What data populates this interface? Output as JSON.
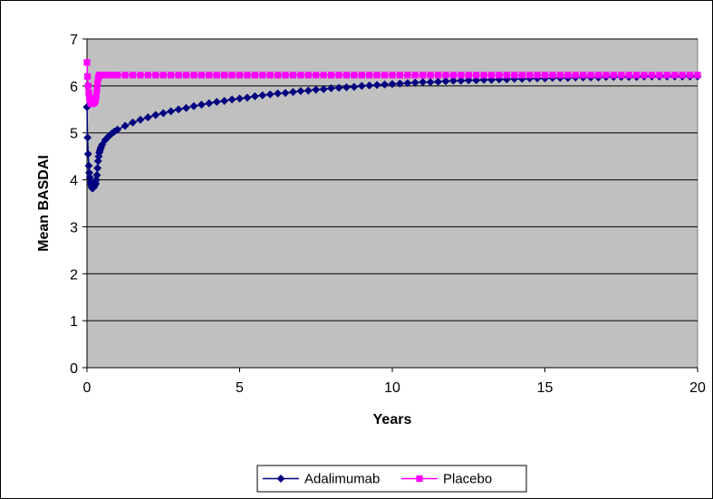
{
  "chart_data": {
    "type": "line",
    "title": "",
    "xlabel": "Years",
    "ylabel": "Mean BASDAI",
    "xlim": [
      0,
      20
    ],
    "ylim": [
      0,
      7
    ],
    "xticks": [
      0,
      5,
      10,
      15,
      20
    ],
    "yticks": [
      0,
      1,
      2,
      3,
      4,
      5,
      6,
      7
    ],
    "grid": "horizontal",
    "plot_background": "#c0c0c0",
    "legend_position": "bottom-center",
    "series": [
      {
        "name": "Adalimumab",
        "color": "#000080",
        "marker": "diamond",
        "x": [
          0,
          0.019,
          0.038,
          0.058,
          0.077,
          0.096,
          0.115,
          0.135,
          0.154,
          0.173,
          0.192,
          0.212,
          0.231,
          0.25,
          0.269,
          0.288,
          0.308,
          0.327,
          0.346,
          0.365,
          0.385,
          0.404,
          0.423,
          0.442,
          0.462,
          0.5,
          0.6,
          0.7,
          0.8,
          0.9,
          1.0,
          1.25,
          1.5,
          1.75,
          2.0,
          2.25,
          2.5,
          2.75,
          3.0,
          3.25,
          3.5,
          3.75,
          4.0,
          4.25,
          4.5,
          4.75,
          5.0,
          5.25,
          5.5,
          5.75,
          6.0,
          6.25,
          6.5,
          6.75,
          7.0,
          7.25,
          7.5,
          7.75,
          8.0,
          8.25,
          8.5,
          8.75,
          9.0,
          9.25,
          9.5,
          9.75,
          10.0,
          10.25,
          10.5,
          10.75,
          11.0,
          11.25,
          11.5,
          11.75,
          12.0,
          12.25,
          12.5,
          12.75,
          13.0,
          13.25,
          13.5,
          13.75,
          14.0,
          14.25,
          14.5,
          14.75,
          15.0,
          15.25,
          15.5,
          15.75,
          16.0,
          16.25,
          16.5,
          16.75,
          17.0,
          17.25,
          17.5,
          17.75,
          18.0,
          18.25,
          18.5,
          18.75,
          19.0,
          19.25,
          19.5,
          19.75,
          20.0
        ],
        "values": [
          5.55,
          4.9,
          4.55,
          4.3,
          4.15,
          4.05,
          3.95,
          3.9,
          3.85,
          3.82,
          3.82,
          3.85,
          3.85,
          3.88,
          3.9,
          3.92,
          4.0,
          4.1,
          4.25,
          4.4,
          4.5,
          4.58,
          4.62,
          4.66,
          4.7,
          4.75,
          4.85,
          4.92,
          4.98,
          5.03,
          5.07,
          5.15,
          5.22,
          5.28,
          5.33,
          5.38,
          5.42,
          5.46,
          5.5,
          5.53,
          5.57,
          5.6,
          5.63,
          5.66,
          5.68,
          5.71,
          5.73,
          5.75,
          5.78,
          5.8,
          5.82,
          5.84,
          5.85,
          5.87,
          5.89,
          5.9,
          5.92,
          5.93,
          5.95,
          5.96,
          5.97,
          5.98,
          6.0,
          6.01,
          6.02,
          6.03,
          6.04,
          6.05,
          6.06,
          6.07,
          6.08,
          6.08,
          6.09,
          6.1,
          6.11,
          6.11,
          6.12,
          6.12,
          6.13,
          6.13,
          6.14,
          6.14,
          6.15,
          6.15,
          6.16,
          6.16,
          6.16,
          6.17,
          6.17,
          6.17,
          6.18,
          6.18,
          6.18,
          6.18,
          6.19,
          6.19,
          6.19,
          6.19,
          6.19,
          6.2,
          6.2,
          6.2,
          6.2,
          6.2,
          6.2,
          6.2,
          6.2
        ]
      },
      {
        "name": "Placebo",
        "color": "#ff00ff",
        "marker": "square",
        "x": [
          0,
          0.019,
          0.038,
          0.058,
          0.077,
          0.096,
          0.115,
          0.135,
          0.154,
          0.173,
          0.192,
          0.212,
          0.231,
          0.25,
          0.269,
          0.288,
          0.308,
          0.327,
          0.346,
          0.365,
          0.385,
          0.404,
          0.423,
          0.442,
          0.462,
          0.5,
          0.6,
          0.7,
          0.8,
          0.9,
          1.0,
          1.25,
          1.5,
          1.75,
          2.0,
          2.25,
          2.5,
          2.75,
          3.0,
          3.25,
          3.5,
          3.75,
          4.0,
          4.25,
          4.5,
          4.75,
          5.0,
          5.25,
          5.5,
          5.75,
          6.0,
          6.25,
          6.5,
          6.75,
          7.0,
          7.25,
          7.5,
          7.75,
          8.0,
          8.25,
          8.5,
          8.75,
          9.0,
          9.25,
          9.5,
          9.75,
          10.0,
          10.25,
          10.5,
          10.75,
          11.0,
          11.25,
          11.5,
          11.75,
          12.0,
          12.25,
          12.5,
          12.75,
          13.0,
          13.25,
          13.5,
          13.75,
          14.0,
          14.25,
          14.5,
          14.75,
          15.0,
          15.25,
          15.5,
          15.75,
          16.0,
          16.25,
          16.5,
          16.75,
          17.0,
          17.25,
          17.5,
          17.75,
          18.0,
          18.25,
          18.5,
          18.75,
          19.0,
          19.25,
          19.5,
          19.75,
          20.0
        ],
        "values": [
          6.5,
          6.2,
          6.0,
          5.85,
          5.75,
          5.7,
          5.65,
          5.63,
          5.62,
          5.62,
          5.63,
          5.64,
          5.65,
          5.66,
          5.68,
          5.72,
          5.8,
          5.92,
          6.05,
          6.15,
          6.2,
          6.22,
          6.23,
          6.23,
          6.23,
          6.23,
          6.23,
          6.23,
          6.23,
          6.23,
          6.23,
          6.23,
          6.23,
          6.23,
          6.23,
          6.23,
          6.23,
          6.23,
          6.23,
          6.23,
          6.23,
          6.23,
          6.23,
          6.23,
          6.23,
          6.23,
          6.23,
          6.23,
          6.23,
          6.23,
          6.23,
          6.23,
          6.23,
          6.23,
          6.23,
          6.23,
          6.23,
          6.23,
          6.23,
          6.23,
          6.23,
          6.23,
          6.23,
          6.23,
          6.23,
          6.23,
          6.23,
          6.23,
          6.23,
          6.23,
          6.23,
          6.23,
          6.23,
          6.23,
          6.23,
          6.23,
          6.23,
          6.23,
          6.23,
          6.23,
          6.23,
          6.23,
          6.23,
          6.23,
          6.23,
          6.23,
          6.23,
          6.23,
          6.23,
          6.23,
          6.23,
          6.23,
          6.23,
          6.23,
          6.23,
          6.23,
          6.23,
          6.23,
          6.23,
          6.23,
          6.23,
          6.23,
          6.23,
          6.23,
          6.23,
          6.23,
          6.23
        ]
      }
    ]
  }
}
